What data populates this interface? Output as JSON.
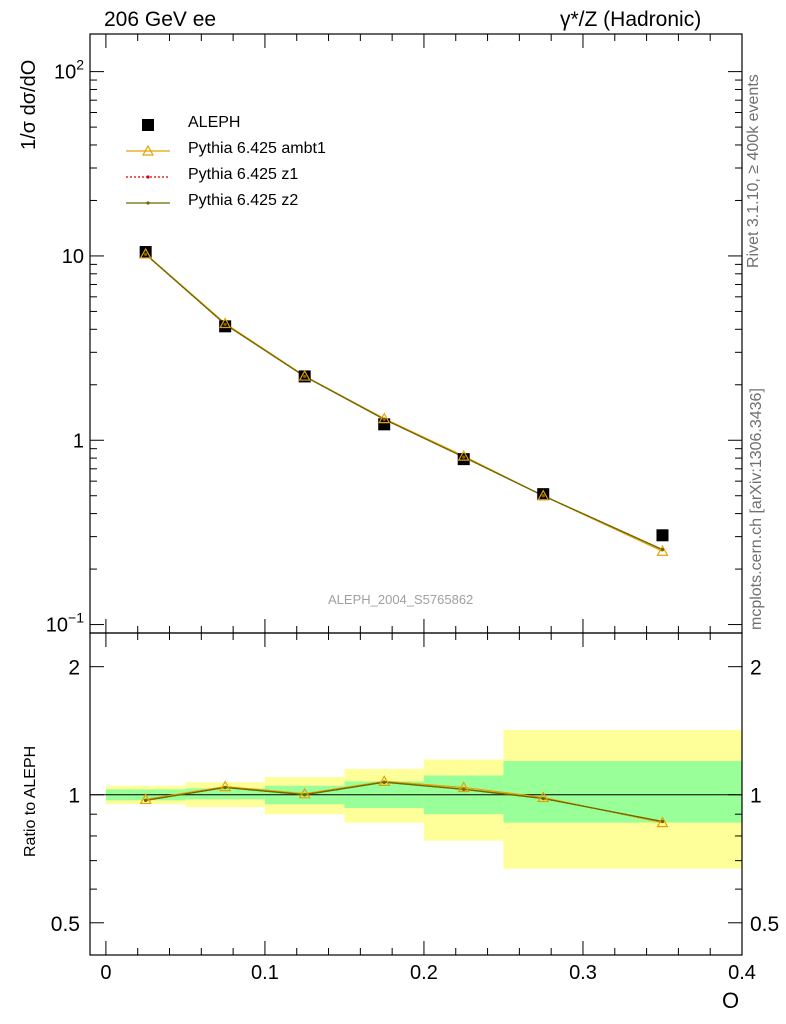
{
  "header": {
    "left": "206 GeV ee",
    "right": "γ*/Z (Hadronic)"
  },
  "side_labels": {
    "rivet": "Rivet 3.1.10, ≥ 400k events",
    "mcplots": "mcplots.cern.ch [arXiv:1306.3436]"
  },
  "analysis_label": "ALEPH_2004_S5765862",
  "colors": {
    "ambt1": "#e8a000",
    "z1": "#e00000",
    "z2": "#6b6b00",
    "band_inner": "#99ff99",
    "band_outer": "#ffff99"
  },
  "chart_data": [
    {
      "type": "scatter",
      "ylabel": "1/σ  dσ/dO",
      "yscale": "log",
      "ylim": [
        0.09,
        160
      ],
      "xlim": [
        -0.01,
        0.4
      ],
      "y_ticks": [
        {
          "value": 100,
          "base": "10",
          "exp": "2"
        },
        {
          "value": 10,
          "base": "10",
          "exp": ""
        },
        {
          "value": 1,
          "base": "1",
          "exp": ""
        },
        {
          "value": 0.1,
          "base": "10",
          "exp": "−1"
        }
      ],
      "series": [
        {
          "name": "ALEPH",
          "marker": "square",
          "x": [
            0.025,
            0.075,
            0.125,
            0.175,
            0.225,
            0.275,
            0.35
          ],
          "y": [
            10.5,
            4.15,
            2.22,
            1.22,
            0.79,
            0.51,
            0.305
          ]
        },
        {
          "name": "Pythia 6.425 ambt1",
          "marker": "triangle",
          "x": [
            0.025,
            0.075,
            0.125,
            0.175,
            0.225,
            0.275,
            0.35
          ],
          "y": [
            10.25,
            4.3,
            2.23,
            1.31,
            0.82,
            0.5,
            0.25
          ]
        },
        {
          "name": "Pythia 6.425 z1",
          "marker": "dot",
          "x": [
            0.025,
            0.075,
            0.125,
            0.175,
            0.225,
            0.275,
            0.35
          ],
          "y": [
            10.2,
            4.25,
            2.22,
            1.3,
            0.81,
            0.5,
            0.255
          ]
        },
        {
          "name": "Pythia 6.425 z2",
          "marker": "dot",
          "x": [
            0.025,
            0.075,
            0.125,
            0.175,
            0.225,
            0.275,
            0.35
          ],
          "y": [
            10.2,
            4.25,
            2.22,
            1.3,
            0.81,
            0.5,
            0.255
          ]
        }
      ]
    },
    {
      "type": "line",
      "xlabel": "O",
      "ylabel": "Ratio to ALEPH",
      "yscale": "log",
      "ylim": [
        0.42,
        2.4
      ],
      "xlim": [
        -0.01,
        0.4
      ],
      "x_ticks": [
        "0",
        "0.1",
        "0.2",
        "0.3",
        "0.4"
      ],
      "x_tick_values": [
        0,
        0.1,
        0.2,
        0.3,
        0.4
      ],
      "y_ticks": [
        "2",
        "1",
        "0.5"
      ],
      "y_tick_values": [
        2,
        1,
        0.5
      ],
      "bands": [
        {
          "x0": 0.0,
          "x1": 0.05,
          "inner": [
            0.97,
            1.03
          ],
          "outer": [
            0.95,
            1.05
          ]
        },
        {
          "x0": 0.05,
          "x1": 0.1,
          "inner": [
            0.975,
            1.035
          ],
          "outer": [
            0.935,
            1.07
          ]
        },
        {
          "x0": 0.1,
          "x1": 0.15,
          "inner": [
            0.95,
            1.05
          ],
          "outer": [
            0.9,
            1.1
          ]
        },
        {
          "x0": 0.15,
          "x1": 0.2,
          "inner": [
            0.93,
            1.075
          ],
          "outer": [
            0.86,
            1.15
          ]
        },
        {
          "x0": 0.2,
          "x1": 0.25,
          "inner": [
            0.9,
            1.11
          ],
          "outer": [
            0.78,
            1.21
          ]
        },
        {
          "x0": 0.25,
          "x1": 0.4,
          "inner": [
            0.86,
            1.2
          ],
          "outer": [
            0.67,
            1.42
          ]
        }
      ],
      "series": [
        {
          "name": "Pythia 6.425 ambt1",
          "x": [
            0.025,
            0.075,
            0.125,
            0.175,
            0.225,
            0.275,
            0.35
          ],
          "y": [
            0.975,
            1.045,
            1.005,
            1.075,
            1.04,
            0.985,
            0.86
          ]
        },
        {
          "name": "Pythia 6.425 z1",
          "x": [
            0.025,
            0.075,
            0.125,
            0.175,
            0.225,
            0.275,
            0.35
          ],
          "y": [
            0.97,
            1.04,
            1.0,
            1.07,
            1.03,
            0.98,
            0.865
          ]
        },
        {
          "name": "Pythia 6.425 z2",
          "x": [
            0.025,
            0.075,
            0.125,
            0.175,
            0.225,
            0.275,
            0.35
          ],
          "y": [
            0.97,
            1.04,
            1.0,
            1.07,
            1.03,
            0.98,
            0.865
          ]
        }
      ]
    }
  ]
}
